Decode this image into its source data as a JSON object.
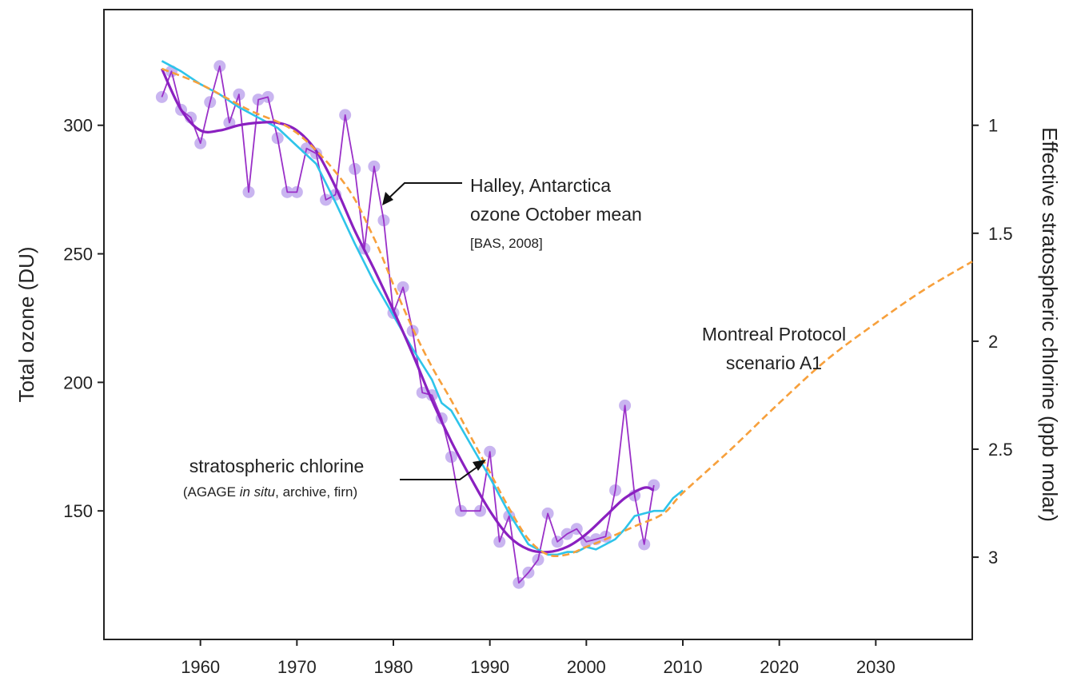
{
  "chart_data": {
    "type": "line",
    "xlabel": "",
    "ylabel": "Total ozone (DU)",
    "y2label": "Effective stratospheric chlorine (ppb molar)",
    "xlim": [
      1950,
      2040
    ],
    "ylim": [
      100,
      345
    ],
    "y2_inverted": true,
    "y2_mapping_du_per_ppb": {
      "ppb_1": 300,
      "ppb_3": 132
    },
    "grid": false,
    "legend": "none",
    "x_ticks": [
      1960,
      1970,
      1980,
      1990,
      2000,
      2010,
      2020,
      2030
    ],
    "y_ticks": [
      150,
      200,
      250,
      300
    ],
    "y2_ticks": [
      {
        "value": 1,
        "label": "1"
      },
      {
        "value": 1.5,
        "label": "1.5"
      },
      {
        "value": 2,
        "label": "2"
      },
      {
        "value": 2.5,
        "label": "2.5"
      },
      {
        "value": 3,
        "label": "3"
      }
    ],
    "series": [
      {
        "kind": "observed_ozone",
        "color": "#9a30c8",
        "marker_color": "#c9b5f0",
        "x": [
          1956,
          1957,
          1958,
          1959,
          1960,
          1961,
          1962,
          1963,
          1964,
          1965,
          1966,
          1967,
          1968,
          1969,
          1970,
          1971,
          1972,
          1973,
          1974,
          1975,
          1976,
          1977,
          1978,
          1979,
          1980,
          1981,
          1982,
          1983,
          1984,
          1985,
          1986,
          1987,
          1989,
          1990,
          1991,
          1992,
          1993,
          1994,
          1995,
          1996,
          1997,
          1998,
          1999,
          2000,
          2001,
          2002,
          2003,
          2004,
          2005,
          2006,
          2007
        ],
        "y": [
          311,
          321,
          306,
          303,
          293,
          309,
          323,
          301,
          312,
          274,
          310,
          311,
          295,
          274,
          274,
          291,
          289,
          271,
          273,
          304,
          283,
          252,
          284,
          263,
          227,
          237,
          220,
          196,
          195,
          186,
          171,
          150,
          150,
          173,
          138,
          148,
          122,
          126,
          131,
          149,
          138,
          141,
          143,
          138,
          139,
          140,
          158,
          191,
          156,
          137,
          160
        ]
      },
      {
        "kind": "ozone_smoothed",
        "color": "#8a20c0",
        "x": [
          1956,
          1958,
          1960,
          1962,
          1964,
          1966,
          1968,
          1970,
          1972,
          1974,
          1976,
          1978,
          1980,
          1982,
          1984,
          1986,
          1988,
          1990,
          1992,
          1994,
          1996,
          1998,
          2000,
          2002,
          2004,
          2006,
          2007
        ],
        "y": [
          322,
          306,
          298,
          298,
          300,
          301,
          301,
          298,
          290,
          276,
          259,
          244,
          228,
          211,
          193,
          177,
          163,
          150,
          140,
          135,
          134,
          136,
          141,
          148,
          155,
          159,
          158
        ]
      },
      {
        "kind": "stratospheric_chlorine_observed",
        "color": "#2ec4ea",
        "x": [
          1956,
          1958,
          1960,
          1962,
          1964,
          1966,
          1968,
          1970,
          1972,
          1974,
          1976,
          1978,
          1980,
          1982,
          1984,
          1985,
          1986,
          1988,
          1990,
          1992,
          1994,
          1996,
          1997,
          1998,
          1999,
          2000,
          2001,
          2002,
          2003,
          2004,
          2005,
          2006,
          2007,
          2008,
          2009,
          2010
        ],
        "y": [
          325,
          321,
          316,
          312,
          307,
          303,
          299,
          292,
          285,
          270,
          254,
          239,
          226,
          213,
          201,
          192,
          189,
          176,
          163,
          149,
          137,
          133,
          133,
          134,
          134,
          136,
          135,
          137,
          139,
          143,
          148,
          149,
          150,
          150,
          155,
          158
        ]
      },
      {
        "kind": "montreal_protocol_scenario_A1",
        "color": "#f7a03c",
        "x": [
          1956,
          1960,
          1965,
          1970,
          1975,
          1978,
          1980,
          1982,
          1984,
          1986,
          1988,
          1990,
          1992,
          1994,
          1996,
          1998,
          2000,
          2002,
          2005,
          2008,
          2010,
          2015,
          2020,
          2025,
          2030,
          2035,
          2040
        ],
        "y": [
          322,
          316,
          306,
          297,
          277,
          256,
          238,
          221,
          206,
          193,
          179,
          165,
          151,
          139,
          133,
          133,
          136,
          139,
          144,
          149,
          157,
          174,
          192,
          209,
          223,
          236,
          247
        ]
      }
    ],
    "annotations": [
      {
        "lines": [
          "Halley, Antarctica",
          "ozone October mean"
        ],
        "source": "[BAS, 2008]",
        "arrow_to": [
          1979,
          272
        ]
      },
      {
        "lines": [
          "Montreal Protocol",
          "scenario A1"
        ]
      },
      {
        "lines": [
          "stratospheric chlorine"
        ],
        "source_parts": [
          "(AGAGE ",
          "in situ",
          ", archive, firn)"
        ],
        "arrow_to": [
          1989,
          172
        ]
      }
    ]
  }
}
